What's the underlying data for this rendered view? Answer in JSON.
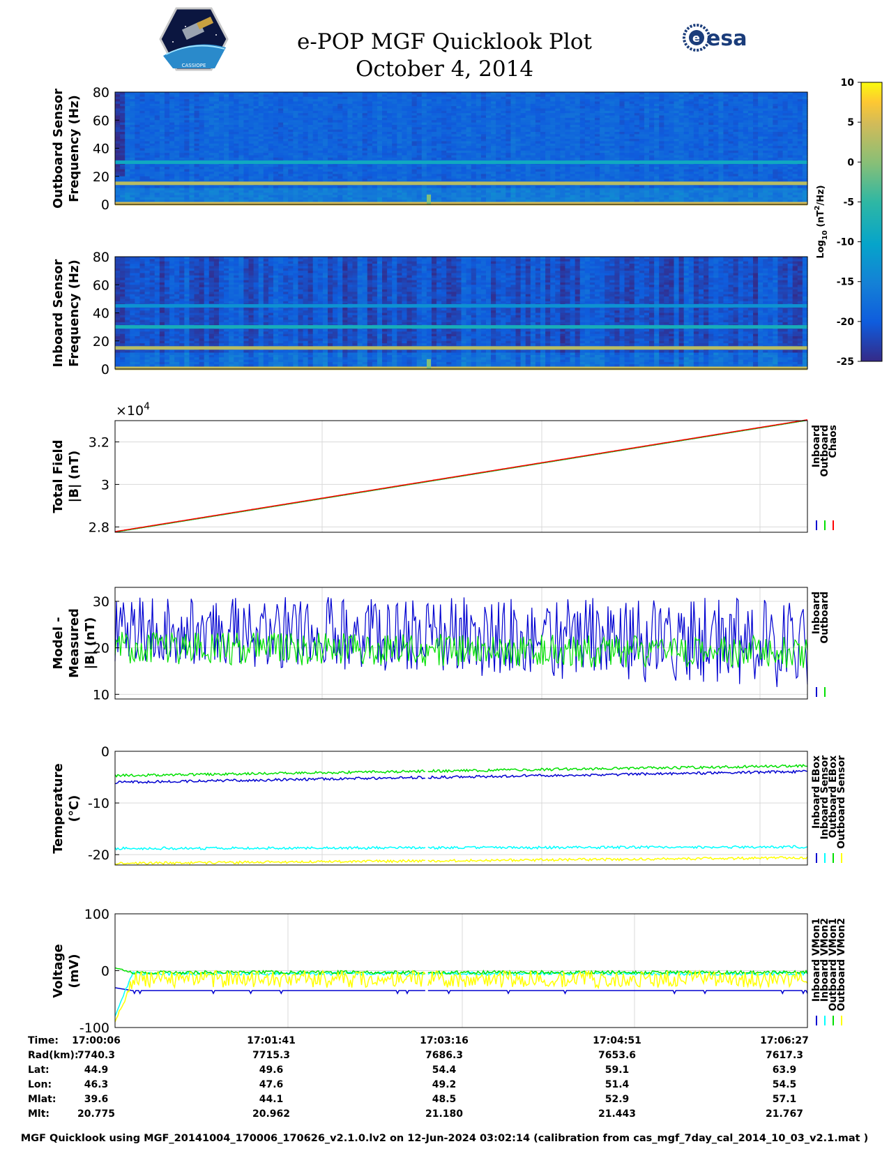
{
  "title": "e-POP MGF Quicklook Plot",
  "date": "October 4, 2014",
  "logos": {
    "cassiope": {
      "name": "cassiope-mission-logo",
      "text": "CASSIOPE"
    },
    "esa": {
      "name": "esa-logo",
      "text": "esa"
    }
  },
  "colors": {
    "inboard": "#0000d0",
    "outboard": "#00e000",
    "chaos": "#ff0000",
    "cyan": "#00ffff",
    "yellow": "#ffff00",
    "grid": "#d9d9d9"
  },
  "footer": "MGF Quicklook using MGF_20141004_170006_170626_v2.1.0.lv2 on 12-Jun-2024 03:02:14 (calibration from cas_mgf_7day_cal_2014_10_03_v2.1.mat )",
  "colorbar": {
    "ticks": [
      "10",
      "5",
      "0",
      "-5",
      "-10",
      "-15",
      "-20",
      "-25"
    ],
    "range": [
      -25,
      10
    ],
    "colormap": "parula",
    "label_prefix": "Log",
    "label_sub": "10",
    "label_mid": " (nT",
    "label_sup": "2",
    "label_suffix": "/Hz)"
  },
  "time_table": {
    "rows": [
      {
        "label": "Time:",
        "values": [
          "17:00:06",
          "17:01:41",
          "17:03:16",
          "17:04:51",
          "17:06:27"
        ]
      },
      {
        "label": "Rad(km):",
        "values": [
          "7740.3",
          "7715.3",
          "7686.3",
          "7653.6",
          "7617.3"
        ]
      },
      {
        "label": "Lat:",
        "values": [
          "44.9",
          "49.6",
          "54.4",
          "59.1",
          "63.9"
        ]
      },
      {
        "label": "Lon:",
        "values": [
          "46.3",
          "47.6",
          "49.2",
          "51.4",
          "54.5"
        ]
      },
      {
        "label": "Mlat:",
        "values": [
          "39.6",
          "44.1",
          "48.5",
          "52.9",
          "57.1"
        ]
      },
      {
        "label": "Mlt:",
        "values": [
          "20.775",
          "20.962",
          "21.180",
          "21.443",
          "21.767"
        ]
      }
    ]
  },
  "chart_data": [
    {
      "type": "heatmap",
      "ylabel_lines": [
        "Outboard Sensor",
        "Frequency (Hz)"
      ],
      "yticks": [
        "80",
        "60",
        "40",
        "20",
        "0"
      ],
      "ylim": [
        0,
        80
      ],
      "clim": [
        -25,
        10
      ],
      "background_level": -19,
      "lines": [
        {
          "freq_hz": 15,
          "level": 3
        },
        {
          "freq_hz": 30,
          "level": -9
        },
        {
          "freq_hz": 0.5,
          "level": 5
        }
      ]
    },
    {
      "type": "heatmap",
      "ylabel_lines": [
        "Inboard Sensor",
        "Frequency (Hz)"
      ],
      "yticks": [
        "80",
        "60",
        "40",
        "20",
        "0"
      ],
      "ylim": [
        0,
        80
      ],
      "clim": [
        -25,
        10
      ],
      "background_level": -21,
      "lines": [
        {
          "freq_hz": 15,
          "level": 3
        },
        {
          "freq_hz": 30,
          "level": -8
        },
        {
          "freq_hz": 45,
          "level": -13
        },
        {
          "freq_hz": 0.5,
          "level": 4
        }
      ]
    },
    {
      "type": "line",
      "ylabel_lines": [
        "Total Field",
        "|B| (nT)"
      ],
      "exponent_base": "×10",
      "exponent_power": "4",
      "yticks": [
        "3.2",
        "3",
        "2.8"
      ],
      "ytick_values": [
        3.2,
        3.0,
        2.8
      ],
      "ylim": [
        2.775,
        3.3
      ],
      "grid": true,
      "legend": [
        "Inboard",
        "Outboard",
        "Chaos"
      ],
      "series": [
        {
          "name": "Inboard",
          "start": 2.776,
          "end": 3.302
        },
        {
          "name": "Outboard",
          "start": 2.776,
          "end": 3.302
        },
        {
          "name": "Chaos",
          "start": 2.778,
          "end": 3.304
        }
      ]
    },
    {
      "type": "line",
      "ylabel_lines": [
        "Model - Measured",
        "|B| (nT)"
      ],
      "yticks": [
        "30",
        "20",
        "10"
      ],
      "ytick_values": [
        30,
        20,
        10
      ],
      "ylim": [
        9,
        33
      ],
      "grid": true,
      "legend": [
        "Inboard",
        "Outboard"
      ],
      "series": [
        {
          "name": "Inboard",
          "mean_start": 24,
          "mean_end": 21,
          "spread": 7
        },
        {
          "name": "Outboard",
          "mean_start": 20,
          "mean_end": 19,
          "spread": 3.5
        }
      ]
    },
    {
      "type": "line",
      "ylabel_lines": [
        "Temperature",
        "(°C)"
      ],
      "yticks": [
        "0",
        "-10",
        "-20"
      ],
      "ytick_values": [
        0,
        -10,
        -20
      ],
      "ylim": [
        -22,
        0
      ],
      "grid": true,
      "legend": [
        "Inboard EBox",
        "Inboard Sensor",
        "Outboard EBox",
        "Outboard Sensor"
      ],
      "series": [
        {
          "name": "Inboard EBox",
          "start": -6.0,
          "end": -3.9
        },
        {
          "name": "Inboard Sensor",
          "start": -18.8,
          "end": -18.5
        },
        {
          "name": "Outboard EBox",
          "start": -4.7,
          "end": -2.8
        },
        {
          "name": "Outboard Sensor",
          "start": -21.7,
          "end": -20.6
        }
      ]
    },
    {
      "type": "line",
      "ylabel_lines": [
        "Voltage",
        "(mV)"
      ],
      "yticks": [
        "100",
        "0",
        "-100"
      ],
      "ytick_values": [
        100,
        0,
        -100
      ],
      "ylim": [
        -100,
        100
      ],
      "grid": true,
      "legend": [
        "Inboard VMon1",
        "Inboard VMon2",
        "Outboard VMon1",
        "Outboard VMon2"
      ],
      "series": [
        {
          "name": "Inboard VMon1",
          "start": -30,
          "level": -35
        },
        {
          "name": "Inboard VMon2",
          "start": -80,
          "level": -5
        },
        {
          "name": "Outboard VMon1",
          "start": 5,
          "level": -3
        },
        {
          "name": "Outboard VMon2",
          "start": -90,
          "level": -15
        }
      ]
    }
  ]
}
